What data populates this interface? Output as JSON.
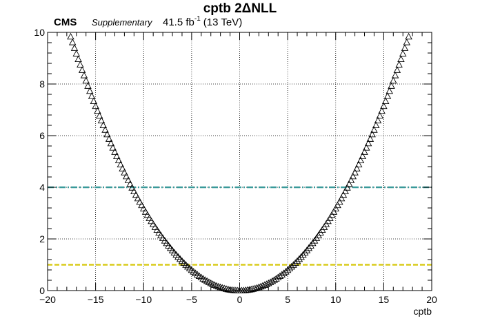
{
  "chart_data": {
    "type": "scatter",
    "title": "cptb 2ΔNLL",
    "header": {
      "experiment": "CMS",
      "label": "Supplementary",
      "lumi": "41.5 fb",
      "lumi_exp": "-1",
      "energy": "(13 TeV)"
    },
    "xlabel": "cptb",
    "ylabel": "",
    "xlim": [
      -20,
      20
    ],
    "ylim": [
      0,
      10
    ],
    "xticks": [
      -20,
      -15,
      -10,
      -5,
      0,
      5,
      10,
      15,
      20
    ],
    "xtick_labels": [
      "−20",
      "−15",
      "−10",
      "−5",
      "0",
      "5",
      "10",
      "15",
      "20"
    ],
    "yticks": [
      0,
      2,
      4,
      6,
      8,
      10
    ],
    "ytick_labels": [
      "0",
      "2",
      "4",
      "6",
      "8",
      "10"
    ],
    "grid": true,
    "marker": "open-triangle",
    "scan": {
      "x_min": -17.6,
      "x_max": 17.6,
      "step": 0.2,
      "curvature": 0.03175
    },
    "reference_lines": [
      {
        "y": 4,
        "color": "#3a9a9a",
        "style": "dash-dot"
      },
      {
        "y": 1,
        "color": "#d8cc1a",
        "style": "dashed"
      }
    ]
  }
}
